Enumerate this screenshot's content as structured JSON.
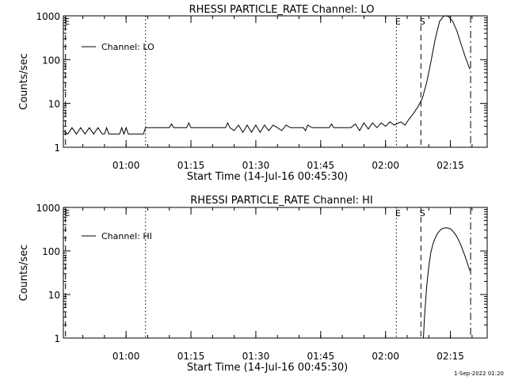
{
  "footer": {
    "date_stamp": "1-Sep-2022 01:20"
  },
  "chart_data": [
    {
      "type": "line",
      "title": "RHESSI PARTICLE_RATE Channel: LO",
      "xlabel": "Start Time (14-Jul-16 00:45:30)",
      "ylabel": "Counts/sec",
      "y_scale": "log",
      "ylim": [
        1,
        1000
      ],
      "xlim": [
        "00:45:30",
        "02:23:30"
      ],
      "y_ticks": [
        1,
        10,
        100,
        1000
      ],
      "y_tick_labels": [
        "1",
        "10",
        "100",
        "1000"
      ],
      "x_ticks": [
        "01:00",
        "01:15",
        "01:30",
        "01:45",
        "02:00",
        "02:15"
      ],
      "legend": {
        "label": "Channel: LO",
        "placement": "top-left"
      },
      "markers": [
        {
          "label": "E",
          "time": "00:46:00",
          "style": "dash"
        },
        {
          "label": "",
          "time": "01:04:30",
          "style": "dot"
        },
        {
          "label": "E",
          "time": "02:02:30",
          "style": "dot"
        },
        {
          "label": "S",
          "time": "02:08:10",
          "style": "dash"
        },
        {
          "label": "",
          "time": "02:19:40",
          "style": "dashdot"
        }
      ],
      "series": [
        {
          "name": "Channel: LO",
          "points": [
            [
              "00:45:30",
              2.4
            ],
            [
              "00:46:30",
              2.0
            ],
            [
              "00:47:30",
              2.8
            ],
            [
              "00:48:30",
              2.0
            ],
            [
              "00:49:30",
              2.8
            ],
            [
              "00:50:30",
              2.0
            ],
            [
              "00:51:30",
              2.8
            ],
            [
              "00:52:30",
              2.0
            ],
            [
              "00:53:30",
              2.8
            ],
            [
              "00:54:30",
              2.0
            ],
            [
              "00:55:00",
              2.0
            ],
            [
              "00:55:30",
              2.8
            ],
            [
              "00:56:00",
              2.0
            ],
            [
              "00:58:30",
              2.0
            ],
            [
              "00:59:00",
              2.8
            ],
            [
              "00:59:30",
              2.0
            ],
            [
              "01:00:00",
              2.8
            ],
            [
              "01:00:30",
              2.0
            ],
            [
              "01:04:00",
              2.0
            ],
            [
              "01:04:30",
              2.8
            ],
            [
              "01:10:00",
              2.8
            ],
            [
              "01:10:30",
              3.4
            ],
            [
              "01:11:00",
              2.8
            ],
            [
              "01:14:00",
              2.8
            ],
            [
              "01:14:30",
              3.6
            ],
            [
              "01:15:00",
              2.8
            ],
            [
              "01:23:00",
              2.8
            ],
            [
              "01:23:30",
              3.6
            ],
            [
              "01:24:00",
              2.8
            ],
            [
              "01:25:00",
              2.4
            ],
            [
              "01:26:00",
              3.2
            ],
            [
              "01:27:00",
              2.2
            ],
            [
              "01:28:00",
              3.2
            ],
            [
              "01:29:00",
              2.2
            ],
            [
              "01:30:00",
              3.2
            ],
            [
              "01:31:00",
              2.2
            ],
            [
              "01:32:00",
              3.2
            ],
            [
              "01:33:00",
              2.4
            ],
            [
              "01:34:00",
              3.2
            ],
            [
              "01:35:00",
              2.8
            ],
            [
              "01:36:00",
              2.4
            ],
            [
              "01:37:00",
              3.2
            ],
            [
              "01:38:00",
              2.8
            ],
            [
              "01:41:00",
              2.8
            ],
            [
              "01:41:30",
              2.4
            ],
            [
              "01:42:00",
              3.2
            ],
            [
              "01:43:00",
              2.8
            ],
            [
              "01:47:00",
              2.8
            ],
            [
              "01:47:30",
              3.4
            ],
            [
              "01:48:00",
              2.8
            ],
            [
              "01:52:00",
              2.8
            ],
            [
              "01:53:00",
              3.4
            ],
            [
              "01:54:00",
              2.4
            ],
            [
              "01:55:00",
              3.6
            ],
            [
              "01:56:00",
              2.6
            ],
            [
              "01:57:00",
              3.6
            ],
            [
              "01:58:00",
              2.8
            ],
            [
              "01:59:00",
              3.6
            ],
            [
              "02:00:00",
              3.0
            ],
            [
              "02:01:00",
              3.8
            ],
            [
              "02:02:00",
              3.2
            ],
            [
              "02:03:30",
              3.8
            ],
            [
              "02:04:30",
              3.2
            ],
            [
              "02:05:30",
              4.5
            ],
            [
              "02:06:30",
              6.0
            ],
            [
              "02:07:30",
              8.5
            ],
            [
              "02:08:30",
              13
            ],
            [
              "02:09:30",
              30
            ],
            [
              "02:10:30",
              90
            ],
            [
              "02:11:30",
              300
            ],
            [
              "02:12:30",
              750
            ],
            [
              "02:13:30",
              1000
            ],
            [
              "02:14:30",
              980
            ],
            [
              "02:15:30",
              760
            ],
            [
              "02:16:30",
              450
            ],
            [
              "02:17:30",
              220
            ],
            [
              "02:18:30",
              110
            ],
            [
              "02:19:30",
              60
            ]
          ]
        }
      ]
    },
    {
      "type": "line",
      "title": "RHESSI PARTICLE_RATE Channel: HI",
      "xlabel": "Start Time (14-Jul-16 00:45:30)",
      "ylabel": "Counts/sec",
      "y_scale": "log",
      "ylim": [
        1,
        1000
      ],
      "xlim": [
        "00:45:30",
        "02:23:30"
      ],
      "y_ticks": [
        1,
        10,
        100,
        1000
      ],
      "y_tick_labels": [
        "1",
        "10",
        "100",
        "1000"
      ],
      "x_ticks": [
        "01:00",
        "01:15",
        "01:30",
        "01:45",
        "02:00",
        "02:15"
      ],
      "legend": {
        "label": "Channel: HI",
        "placement": "top-left"
      },
      "markers": [
        {
          "label": "E",
          "time": "00:46:00",
          "style": "dash"
        },
        {
          "label": "",
          "time": "01:04:30",
          "style": "dot"
        },
        {
          "label": "E",
          "time": "02:02:30",
          "style": "dot"
        },
        {
          "label": "S",
          "time": "02:08:10",
          "style": "dash"
        },
        {
          "label": "",
          "time": "02:19:40",
          "style": "dashdot"
        }
      ],
      "series": [
        {
          "name": "Channel: HI",
          "points": [
            [
              "02:08:45",
              1.0
            ],
            [
              "02:09:00",
              3.0
            ],
            [
              "02:09:30",
              15
            ],
            [
              "02:10:00",
              45
            ],
            [
              "02:10:30",
              95
            ],
            [
              "02:11:00",
              150
            ],
            [
              "02:11:30",
              200
            ],
            [
              "02:12:00",
              250
            ],
            [
              "02:12:30",
              290
            ],
            [
              "02:13:00",
              320
            ],
            [
              "02:13:30",
              335
            ],
            [
              "02:14:00",
              340
            ],
            [
              "02:14:30",
              335
            ],
            [
              "02:15:00",
              320
            ],
            [
              "02:15:30",
              290
            ],
            [
              "02:16:00",
              250
            ],
            [
              "02:16:30",
              210
            ],
            [
              "02:17:00",
              170
            ],
            [
              "02:17:30",
              130
            ],
            [
              "02:18:00",
              95
            ],
            [
              "02:18:30",
              70
            ],
            [
              "02:19:00",
              50
            ],
            [
              "02:19:30",
              35
            ]
          ]
        }
      ]
    }
  ]
}
